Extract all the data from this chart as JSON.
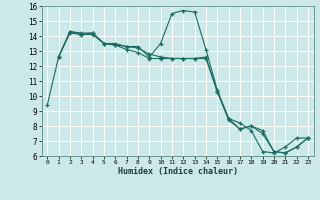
{
  "xlabel": "Humidex (Indice chaleur)",
  "bg_color": "#cce8e8",
  "grid_color": "#ffffff",
  "line_color": "#1a6b60",
  "xlim": [
    -0.5,
    23.5
  ],
  "ylim": [
    6,
    16
  ],
  "xticks": [
    0,
    1,
    2,
    3,
    4,
    5,
    6,
    7,
    8,
    9,
    10,
    11,
    12,
    13,
    14,
    15,
    16,
    17,
    18,
    19,
    20,
    21,
    22,
    23
  ],
  "yticks": [
    6,
    7,
    8,
    9,
    10,
    11,
    12,
    13,
    14,
    15,
    16
  ],
  "line1_x": [
    0,
    1,
    2,
    3,
    4,
    5,
    6,
    7,
    8,
    9,
    10,
    11,
    12,
    13,
    14,
    15,
    16,
    17,
    18,
    19,
    20,
    21,
    22,
    23
  ],
  "line1_y": [
    9.4,
    12.6,
    14.3,
    14.2,
    14.2,
    13.5,
    13.5,
    13.3,
    13.3,
    12.6,
    13.5,
    15.5,
    15.7,
    15.6,
    13.1,
    10.4,
    8.5,
    8.2,
    7.7,
    6.3,
    6.2,
    6.6,
    7.2,
    7.2
  ],
  "line2_x": [
    1,
    2,
    3,
    4,
    5,
    6,
    7,
    8,
    9,
    10,
    11,
    12,
    13,
    14,
    15,
    16,
    17,
    18,
    19,
    20,
    21,
    22,
    23
  ],
  "line2_y": [
    12.6,
    14.3,
    14.1,
    14.1,
    13.5,
    13.4,
    13.3,
    13.2,
    12.8,
    12.6,
    12.5,
    12.5,
    12.5,
    12.5,
    10.3,
    8.4,
    7.8,
    8.0,
    7.5,
    6.3,
    6.2,
    6.6,
    7.2
  ],
  "line3_x": [
    1,
    2,
    3,
    4,
    5,
    6,
    7,
    8,
    9,
    10,
    11,
    12,
    13,
    14,
    15,
    16,
    17,
    18,
    19,
    20,
    21,
    22,
    23
  ],
  "line3_y": [
    12.6,
    14.2,
    14.1,
    14.2,
    13.5,
    13.4,
    13.1,
    12.9,
    12.5,
    12.5,
    12.5,
    12.5,
    12.5,
    12.6,
    10.3,
    8.5,
    7.8,
    8.0,
    7.7,
    6.3,
    6.2,
    6.6,
    7.2
  ]
}
